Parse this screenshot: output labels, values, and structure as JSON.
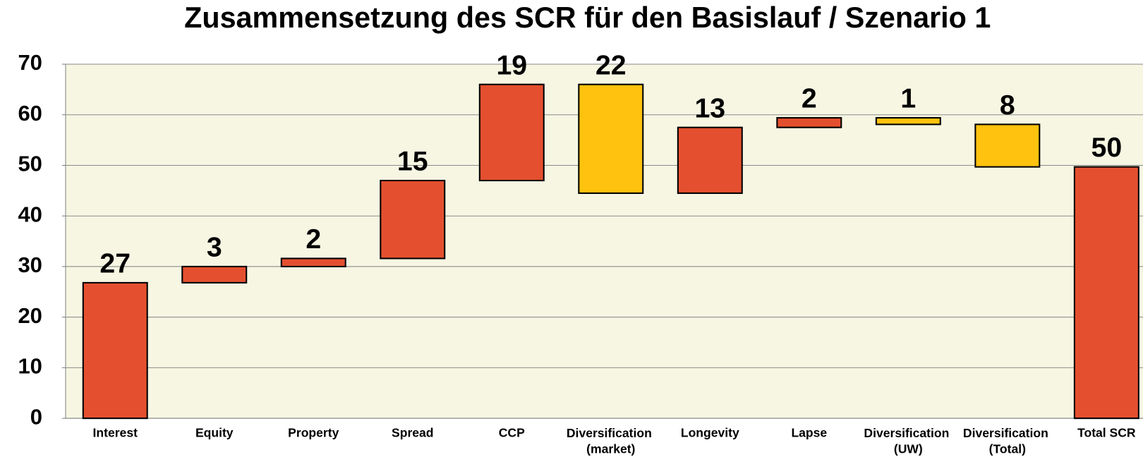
{
  "chart_data": {
    "type": "waterfall",
    "title": "Zusammensetzung des SCR für den Basislauf / Szenario 1",
    "categories": [
      "Interest",
      "Equity",
      "Property",
      "Spread",
      "CCP",
      "Diversification (market)",
      "Longevity",
      "Lapse",
      "Diversification (UW)",
      "Diversification (Total)",
      "Total SCR"
    ],
    "values": [
      26.8,
      3.2,
      1.6,
      15.4,
      19.0,
      -21.5,
      13.0,
      1.9,
      -1.3,
      -8.4,
      49.7
    ],
    "value_labels": [
      "27",
      "3",
      "2",
      "15",
      "19",
      "22",
      "13",
      "2",
      "1",
      "8",
      "50"
    ],
    "is_total": [
      false,
      false,
      false,
      false,
      false,
      false,
      false,
      false,
      false,
      false,
      true
    ],
    "increase_color": "#e4502f",
    "decrease_color": "#ffc20e",
    "total_color": "#e4502f",
    "ylim": [
      0,
      70
    ],
    "yticks": [
      0,
      10,
      20,
      30,
      40,
      50,
      60,
      70
    ],
    "grid": true
  }
}
